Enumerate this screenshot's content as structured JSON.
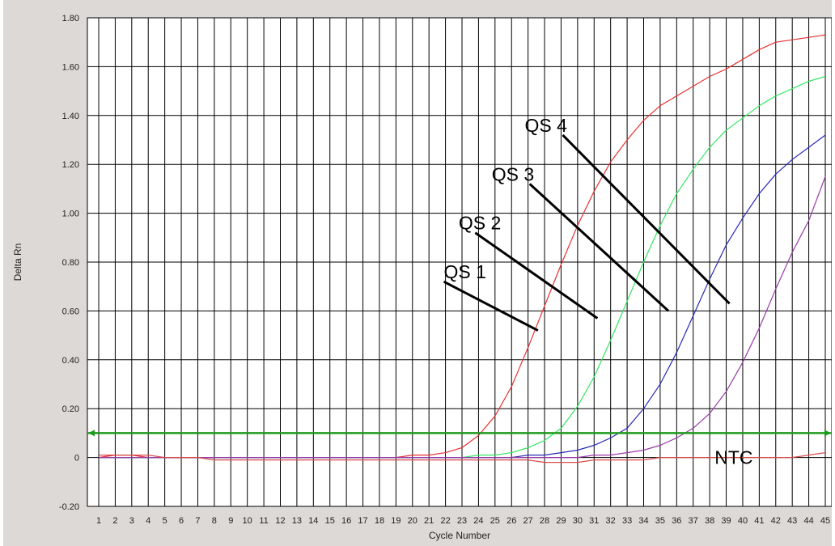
{
  "chart_data": {
    "type": "line",
    "title": "",
    "xlabel": "Cycle Number",
    "ylabel": "Delta Rn",
    "xlim": [
      1,
      45
    ],
    "ylim": [
      -0.2,
      1.8
    ],
    "x_ticks": [
      1,
      2,
      3,
      4,
      5,
      6,
      7,
      8,
      9,
      10,
      11,
      12,
      13,
      14,
      15,
      16,
      17,
      18,
      19,
      20,
      21,
      22,
      23,
      24,
      25,
      26,
      27,
      28,
      29,
      30,
      31,
      32,
      33,
      34,
      35,
      36,
      37,
      38,
      39,
      40,
      41,
      42,
      43,
      44,
      45
    ],
    "y_ticks": [
      "-0.20",
      "0",
      "0.20",
      "0.40",
      "0.60",
      "0.80",
      "1.00",
      "1.20",
      "1.40",
      "1.60",
      "1.80"
    ],
    "grid": true,
    "threshold": {
      "value": 0.1,
      "color": "#1e9a1e"
    },
    "series": [
      {
        "color": "#e83030",
        "x": [
          1,
          2,
          3,
          4,
          5,
          6,
          7,
          8,
          9,
          10,
          11,
          12,
          13,
          14,
          15,
          16,
          17,
          18,
          19,
          20,
          21,
          22,
          23,
          24,
          25,
          26,
          27,
          28,
          29,
          30,
          31,
          32,
          33,
          34,
          35,
          36,
          37,
          38,
          39,
          40,
          41,
          42,
          43,
          44,
          45
        ],
        "values": [
          0.0,
          0.01,
          0.01,
          0.0,
          0.0,
          0.0,
          0.0,
          0.0,
          0.0,
          0.0,
          0.0,
          0.0,
          0.0,
          0.0,
          0.0,
          0.0,
          0.0,
          0.0,
          0.0,
          0.01,
          0.01,
          0.02,
          0.04,
          0.09,
          0.17,
          0.29,
          0.45,
          0.62,
          0.79,
          0.95,
          1.09,
          1.21,
          1.3,
          1.38,
          1.44,
          1.48,
          1.52,
          1.56,
          1.59,
          1.63,
          1.67,
          1.7,
          1.71,
          1.72,
          1.73
        ]
      },
      {
        "color": "#30e860",
        "x": [
          1,
          2,
          3,
          4,
          5,
          6,
          7,
          8,
          9,
          10,
          11,
          12,
          13,
          14,
          15,
          16,
          17,
          18,
          19,
          20,
          21,
          22,
          23,
          24,
          25,
          26,
          27,
          28,
          29,
          30,
          31,
          32,
          33,
          34,
          35,
          36,
          37,
          38,
          39,
          40,
          41,
          42,
          43,
          44,
          45
        ],
        "values": [
          0.0,
          0.0,
          0.0,
          0.0,
          0.0,
          0.0,
          0.0,
          0.0,
          0.0,
          0.0,
          0.0,
          0.0,
          0.0,
          0.0,
          0.0,
          0.0,
          0.0,
          0.0,
          0.0,
          0.0,
          0.0,
          0.0,
          0.0,
          0.01,
          0.01,
          0.02,
          0.04,
          0.07,
          0.12,
          0.21,
          0.33,
          0.48,
          0.64,
          0.8,
          0.95,
          1.08,
          1.18,
          1.27,
          1.34,
          1.39,
          1.44,
          1.48,
          1.51,
          1.54,
          1.56
        ]
      },
      {
        "color": "#2828b8",
        "x": [
          1,
          2,
          3,
          4,
          5,
          6,
          7,
          8,
          9,
          10,
          11,
          12,
          13,
          14,
          15,
          16,
          17,
          18,
          19,
          20,
          21,
          22,
          23,
          24,
          25,
          26,
          27,
          28,
          29,
          30,
          31,
          32,
          33,
          34,
          35,
          36,
          37,
          38,
          39,
          40,
          41,
          42,
          43,
          44,
          45
        ],
        "values": [
          0.0,
          0.0,
          0.0,
          0.0,
          0.0,
          0.0,
          0.0,
          0.0,
          0.0,
          0.0,
          0.0,
          0.0,
          0.0,
          0.0,
          0.0,
          0.0,
          0.0,
          0.0,
          0.0,
          0.0,
          0.0,
          0.0,
          0.0,
          0.0,
          0.0,
          0.0,
          0.01,
          0.01,
          0.02,
          0.03,
          0.05,
          0.08,
          0.12,
          0.2,
          0.3,
          0.43,
          0.58,
          0.73,
          0.87,
          0.98,
          1.08,
          1.16,
          1.22,
          1.27,
          1.32
        ]
      },
      {
        "color": "#9a3aa8",
        "x": [
          1,
          2,
          3,
          4,
          5,
          6,
          7,
          8,
          9,
          10,
          11,
          12,
          13,
          14,
          15,
          16,
          17,
          18,
          19,
          20,
          21,
          22,
          23,
          24,
          25,
          26,
          27,
          28,
          29,
          30,
          31,
          32,
          33,
          34,
          35,
          36,
          37,
          38,
          39,
          40,
          41,
          42,
          43,
          44,
          45
        ],
        "values": [
          0.0,
          0.0,
          0.0,
          0.0,
          0.0,
          0.0,
          0.0,
          0.0,
          0.0,
          0.0,
          0.0,
          0.0,
          0.0,
          0.0,
          0.0,
          0.0,
          0.0,
          0.0,
          0.0,
          0.0,
          0.0,
          0.0,
          0.0,
          0.0,
          0.0,
          0.0,
          0.0,
          0.0,
          0.0,
          0.0,
          0.01,
          0.01,
          0.02,
          0.03,
          0.05,
          0.08,
          0.12,
          0.18,
          0.27,
          0.39,
          0.53,
          0.69,
          0.84,
          0.97,
          1.15
        ]
      },
      {
        "color": "#d84a4a",
        "x": [
          1,
          2,
          3,
          4,
          5,
          6,
          7,
          8,
          9,
          10,
          11,
          12,
          13,
          14,
          15,
          16,
          17,
          18,
          19,
          20,
          21,
          22,
          23,
          24,
          25,
          26,
          27,
          28,
          29,
          30,
          31,
          32,
          33,
          34,
          35,
          36,
          37,
          38,
          39,
          40,
          41,
          42,
          43,
          44,
          45
        ],
        "values": [
          0.01,
          0.01,
          0.01,
          0.01,
          0.0,
          0.0,
          0.0,
          -0.01,
          -0.01,
          -0.01,
          -0.01,
          -0.01,
          -0.01,
          -0.01,
          -0.01,
          -0.01,
          -0.01,
          -0.01,
          -0.01,
          -0.01,
          -0.01,
          -0.01,
          -0.01,
          -0.01,
          -0.01,
          -0.01,
          -0.01,
          -0.02,
          -0.02,
          -0.02,
          -0.01,
          -0.01,
          -0.01,
          -0.01,
          0.0,
          0.0,
          0.0,
          0.0,
          0.0,
          0.0,
          0.0,
          0.0,
          0.0,
          0.01,
          0.02
        ]
      }
    ],
    "annotations": [
      {
        "text": "QS 1",
        "anchor": [
          21.9,
          0.76
        ],
        "line_from": [
          21.9,
          0.72
        ],
        "line_to": [
          27.6,
          0.52
        ]
      },
      {
        "text": "QS 2",
        "anchor": [
          22.8,
          0.96
        ],
        "line_from": [
          23.8,
          0.92
        ],
        "line_to": [
          31.2,
          0.57
        ]
      },
      {
        "text": "QS 3",
        "anchor": [
          24.8,
          1.16
        ],
        "line_from": [
          27.1,
          1.12
        ],
        "line_to": [
          35.5,
          0.6
        ]
      },
      {
        "text": "QS 4",
        "anchor": [
          26.8,
          1.36
        ],
        "line_from": [
          29.1,
          1.32
        ],
        "line_to": [
          39.2,
          0.63
        ]
      },
      {
        "text": "NTC",
        "anchor": [
          38.3,
          0.0
        ],
        "line_from": null,
        "line_to": null
      }
    ]
  }
}
